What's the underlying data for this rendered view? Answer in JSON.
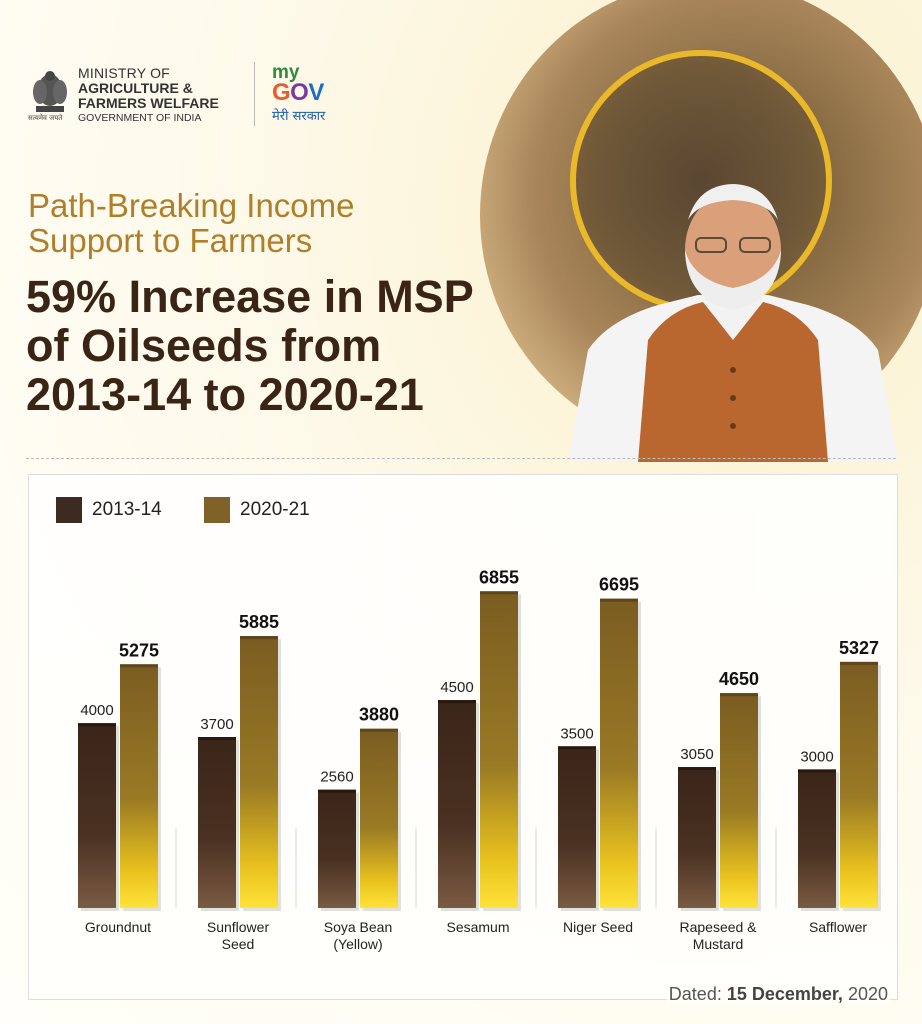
{
  "header": {
    "ministry_line1": "MINISTRY OF",
    "ministry_line2": "AGRICULTURE &",
    "ministry_line3": "FARMERS WELFARE",
    "ministry_line4": "GOVERNMENT OF INDIA",
    "emblem_caption": "सत्यमेव जयते",
    "mygov_my": "my",
    "mygov_g": "G",
    "mygov_o": "O",
    "mygov_v": "V",
    "mygov_hindi": "मेरी सरकार",
    "subtitle_line1": "Path-Breaking Income",
    "subtitle_line2": "Support to Farmers",
    "headline_line1": "59% Increase in MSP",
    "headline_line2": "of Oilseeds from",
    "headline_line3": "2013-14 to 2020-21"
  },
  "footer": {
    "dated_label": "Dated:",
    "date_day_month": "15 December,",
    "date_year": "2020"
  },
  "colors": {
    "series_2013": "#3d2a20",
    "series_2020": "#7e6227",
    "bar_glow": "#ffd21c",
    "title": "#3a2416",
    "subtitle": "#b07f2a"
  },
  "chart_data": {
    "type": "bar",
    "categories": [
      "Groundnut",
      "Sunflower Seed",
      "Soya Bean (Yellow)",
      "Sesamum",
      "Niger Seed",
      "Rapeseed & Mustard",
      "Safflower"
    ],
    "category_lines": [
      [
        "Groundnut"
      ],
      [
        "Sunflower",
        "Seed"
      ],
      [
        "Soya Bean",
        "(Yellow)"
      ],
      [
        "Sesamum"
      ],
      [
        "Niger Seed"
      ],
      [
        "Rapeseed &",
        "Mustard"
      ],
      [
        "Safflower"
      ]
    ],
    "series": [
      {
        "name": "2013-14",
        "values": [
          4000,
          3700,
          2560,
          4500,
          3500,
          3050,
          3000
        ],
        "labels": [
          "4000",
          "3700",
          "2560",
          "4500",
          "3500",
          "3050",
          "3000"
        ]
      },
      {
        "name": "2020-21",
        "values": [
          5275,
          5885,
          3880,
          6855,
          6695,
          4650,
          5327
        ],
        "labels": [
          "5275",
          "5885",
          "3880",
          "6855",
          "6695",
          "4650",
          "5327"
        ]
      }
    ],
    "legend_position": "top-left",
    "grid": false
  }
}
